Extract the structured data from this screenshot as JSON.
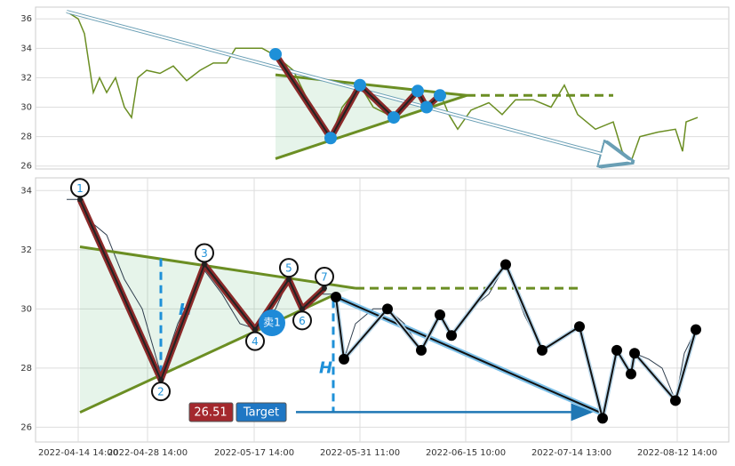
{
  "chart_data": [
    {
      "type": "line",
      "color": "#6b8e23",
      "x": [
        35,
        48,
        55,
        60,
        65,
        72,
        80,
        90,
        100,
        108,
        115,
        125,
        140,
        155,
        170,
        185,
        200,
        215,
        225,
        240,
        255,
        270,
        290,
        310,
        332,
        345,
        365,
        380,
        403,
        420,
        430,
        440,
        455,
        465,
        475,
        490,
        510,
        525,
        540,
        560,
        580,
        595,
        610,
        630,
        650,
        660,
        670,
        680,
        700,
        720,
        728,
        732,
        745
      ],
      "values": [
        36.5,
        36,
        35,
        33,
        31,
        32,
        31,
        32,
        30,
        29.3,
        32,
        32.5,
        32.3,
        32.8,
        31.8,
        32.5,
        33,
        33,
        34,
        34,
        34,
        33.5,
        32.5,
        30,
        27.9,
        30,
        31.5,
        30,
        29.3,
        30.5,
        31,
        30.2,
        31,
        29.5,
        28.5,
        29.8,
        30.3,
        29.5,
        30.5,
        30.5,
        30,
        31.5,
        29.5,
        28.5,
        29,
        27,
        26.3,
        28,
        28.3,
        28.5,
        27,
        29,
        29.3
      ],
      "xlim": [
        0,
        780
      ],
      "ylim": [
        25.8,
        36.8
      ],
      "yticks": [
        26,
        28,
        30,
        32,
        34,
        36
      ],
      "grid": true,
      "pattern": {
        "color": "#1e90d8",
        "x": [
          270,
          332,
          365,
          403,
          430,
          440,
          455
        ],
        "values": [
          33.6,
          27.9,
          31.5,
          29.3,
          31.1,
          30,
          30.8
        ]
      },
      "upper": {
        "x": [
          270,
          485
        ],
        "values": [
          32.2,
          30.8
        ]
      },
      "lower": {
        "x": [
          270,
          485
        ],
        "values": [
          26.5,
          30.8
        ]
      },
      "dash": {
        "x": [
          485,
          650
        ],
        "values": [
          30.8,
          30.8
        ]
      },
      "trendline": {
        "x": [
          35,
          670
        ],
        "values": [
          36.5,
          26.3
        ]
      }
    },
    {
      "type": "line",
      "color": "#2f3e4e",
      "x": [
        35,
        48,
        60,
        80,
        100,
        120,
        141,
        160,
        190,
        210,
        230,
        250,
        270,
        285,
        300,
        320,
        335,
        347,
        360,
        380,
        396,
        415,
        434,
        455,
        468,
        490,
        510,
        529,
        550,
        570,
        590,
        612,
        625,
        638,
        654,
        670,
        674,
        690,
        705,
        720,
        730,
        743
      ],
      "values": [
        33.7,
        33.7,
        33,
        32.5,
        31,
        30,
        27.8,
        29.5,
        31.3,
        30.5,
        29.5,
        29.3,
        30,
        31,
        30,
        30.5,
        30.5,
        28.3,
        29.5,
        30,
        30,
        29.5,
        28.6,
        29.8,
        29.1,
        30,
        30.5,
        31.5,
        29.8,
        28.6,
        29,
        29.4,
        28,
        26.3,
        28.6,
        27.8,
        28.5,
        28.3,
        28,
        26.9,
        28.5,
        29.3
      ],
      "xlim": [
        0,
        780
      ],
      "ylim": [
        25.5,
        34.43
      ],
      "yticks": [
        26,
        28,
        30,
        32,
        34
      ],
      "grid": true,
      "xticks": [
        {
          "value": 48,
          "label": "2022-04-14 14:00"
        },
        {
          "value": 126,
          "label": "2022-04-28 14:00"
        },
        {
          "value": 246,
          "label": "2022-05-17 14:00"
        },
        {
          "value": 365,
          "label": "2022-05-31 11:00"
        },
        {
          "value": 484,
          "label": "2022-06-15 10:00"
        },
        {
          "value": 603,
          "label": "2022-07-14 13:00"
        },
        {
          "value": 722,
          "label": "2022-08-12 14:00"
        }
      ],
      "pattern": {
        "x": [
          50,
          141,
          190,
          247,
          285,
          300,
          325
        ],
        "values": [
          33.7,
          27.6,
          31.5,
          29.3,
          31,
          30,
          30.7
        ],
        "labels": [
          "1",
          "2",
          "3",
          "4",
          "5",
          "6",
          "7"
        ]
      },
      "upper": {
        "x": [
          50,
          360
        ],
        "values": [
          32.1,
          30.7
        ]
      },
      "lower": {
        "x": [
          50,
          338
        ],
        "values": [
          26.5,
          30.5
        ]
      },
      "dash": {
        "x": [
          360,
          615
        ],
        "values": [
          30.7,
          30.7
        ]
      },
      "projection": {
        "x": [
          338,
          635
        ],
        "values": [
          30.4,
          26.5
        ]
      },
      "swing": {
        "x": [
          338,
          347,
          396,
          434,
          455,
          468,
          529,
          570,
          612,
          638,
          654,
          670,
          674,
          720,
          743
        ],
        "values": [
          30.4,
          28.3,
          30,
          28.6,
          29.8,
          29.1,
          31.5,
          28.6,
          29.4,
          26.3,
          28.6,
          27.8,
          28.5,
          26.9,
          29.3
        ]
      },
      "height_lines": [
        {
          "x": 141,
          "values": [
            31.7,
            27.6
          ]
        },
        {
          "x": 335,
          "values": [
            30.3,
            26.5
          ]
        }
      ],
      "height_label": "H",
      "signal_label": "卖1",
      "target_value": 26.51,
      "target_label": "Target",
      "target_x": [
        293,
        625
      ]
    }
  ]
}
